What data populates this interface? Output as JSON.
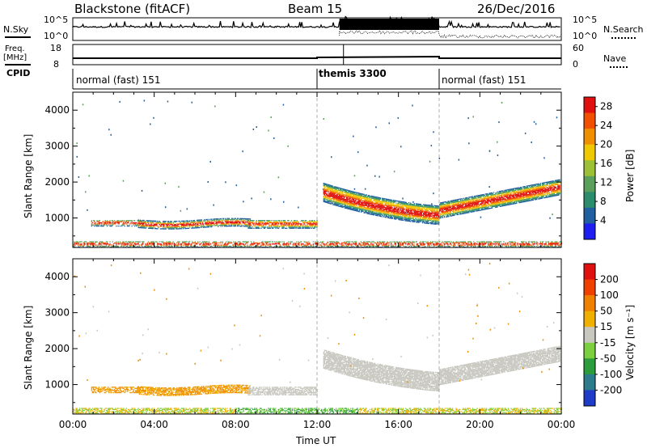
{
  "header": {
    "station": "Blackstone (fitACF)",
    "beam": "Beam 15",
    "date": "26/Dec/2016"
  },
  "noise_panel": {
    "left_label": "N.Sky",
    "right_label": "N.Search",
    "left_ticks": [
      "10^5",
      "10^0"
    ],
    "right_ticks": [
      "10^5",
      "10^0"
    ]
  },
  "freq_panel": {
    "left_label_line1": "Freq.",
    "left_label_line2": "[MHz]",
    "right_label": "Nave",
    "left_ticks": [
      "18",
      "8"
    ],
    "right_ticks": [
      "60",
      "0"
    ]
  },
  "cpid_panel": {
    "label": "CPID",
    "modes": [
      {
        "name": "normal (fast) 151",
        "start_hour": 0,
        "bold": false
      },
      {
        "name": "themis 3300",
        "start_hour": 12,
        "bold": true
      },
      {
        "name": "normal (fast) 151",
        "start_hour": 18,
        "bold": false
      }
    ]
  },
  "chart_data": [
    {
      "type": "heatmap",
      "parameter": "Power",
      "xlabel": "",
      "ylabel": "Slant Range [km]",
      "xlim": [
        0,
        24
      ],
      "ylim": [
        180,
        4500
      ],
      "yticks": [
        "1000",
        "2000",
        "3000",
        "4000"
      ],
      "colorbar_label": "Power [dB]",
      "colorbar_ticks": [
        "28",
        "24",
        "20",
        "16",
        "12",
        "8",
        "4"
      ],
      "colorbar_range": [
        0,
        30
      ],
      "colorbar_colors": [
        "#1e1ef0",
        "#2060a0",
        "#2c8c6c",
        "#5aa05a",
        "#9cc038",
        "#f0c800",
        "#f09000",
        "#f05000",
        "#e01010"
      ]
    },
    {
      "type": "heatmap",
      "parameter": "Velocity",
      "xlabel": "Time UT",
      "ylabel": "Slant Range [km]",
      "xlim": [
        0,
        24
      ],
      "ylim": [
        180,
        4500
      ],
      "yticks": [
        "1000",
        "2000",
        "3000",
        "4000"
      ],
      "xticks": [
        "00:00",
        "04:00",
        "08:00",
        "12:00",
        "16:00",
        "20:00",
        "00:00"
      ],
      "colorbar_label": "Velocity [m s⁻¹]",
      "colorbar_ticks": [
        "200",
        "100",
        "50",
        "15",
        "-15",
        "-50",
        "-100",
        "-200"
      ],
      "colorbar_colors": [
        "#1e3cc8",
        "#2c7c8c",
        "#2c9c3c",
        "#7cd040",
        "#c8c8c0",
        "#f0b000",
        "#f08000",
        "#f04000",
        "#e01010"
      ]
    }
  ]
}
